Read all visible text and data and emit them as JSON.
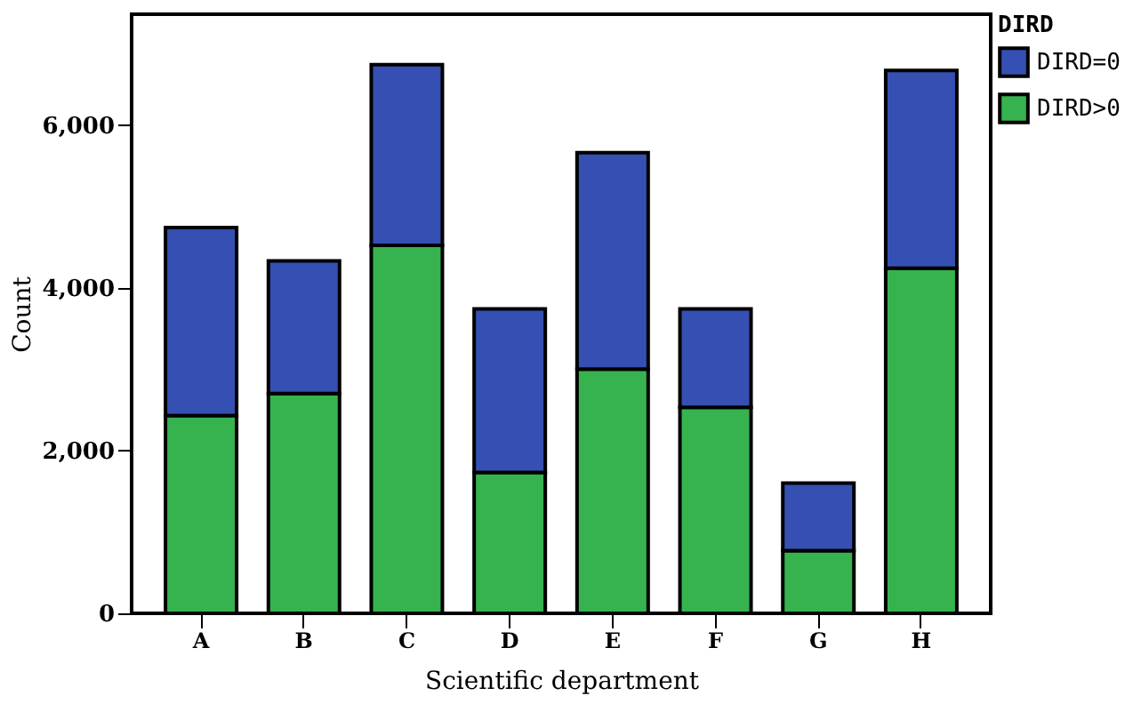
{
  "chart_data": {
    "type": "bar",
    "stacked": true,
    "xlabel": "Scientific department",
    "ylabel": "Count",
    "legend_title": "DIRD",
    "legend": "top right",
    "categories": [
      "A",
      "B",
      "C",
      "D",
      "E",
      "F",
      "G",
      "H"
    ],
    "series": [
      {
        "name": "DIRD>0",
        "color": "#36b34f",
        "values": [
          2430,
          2700,
          4520,
          1730,
          3000,
          2530,
          770,
          4240
        ]
      },
      {
        "name": "DIRD=0",
        "color": "#3550b2",
        "values": [
          2310,
          1630,
          2220,
          2010,
          2660,
          1210,
          830,
          2430
        ]
      }
    ],
    "ylim": [
      0,
      7360
    ],
    "yticks": [
      {
        "value": 0,
        "label": "0"
      },
      {
        "value": 2000,
        "label": "2,000"
      },
      {
        "value": 4000,
        "label": "4,000"
      },
      {
        "value": 6000,
        "label": "6,000"
      }
    ],
    "grid": false
  }
}
